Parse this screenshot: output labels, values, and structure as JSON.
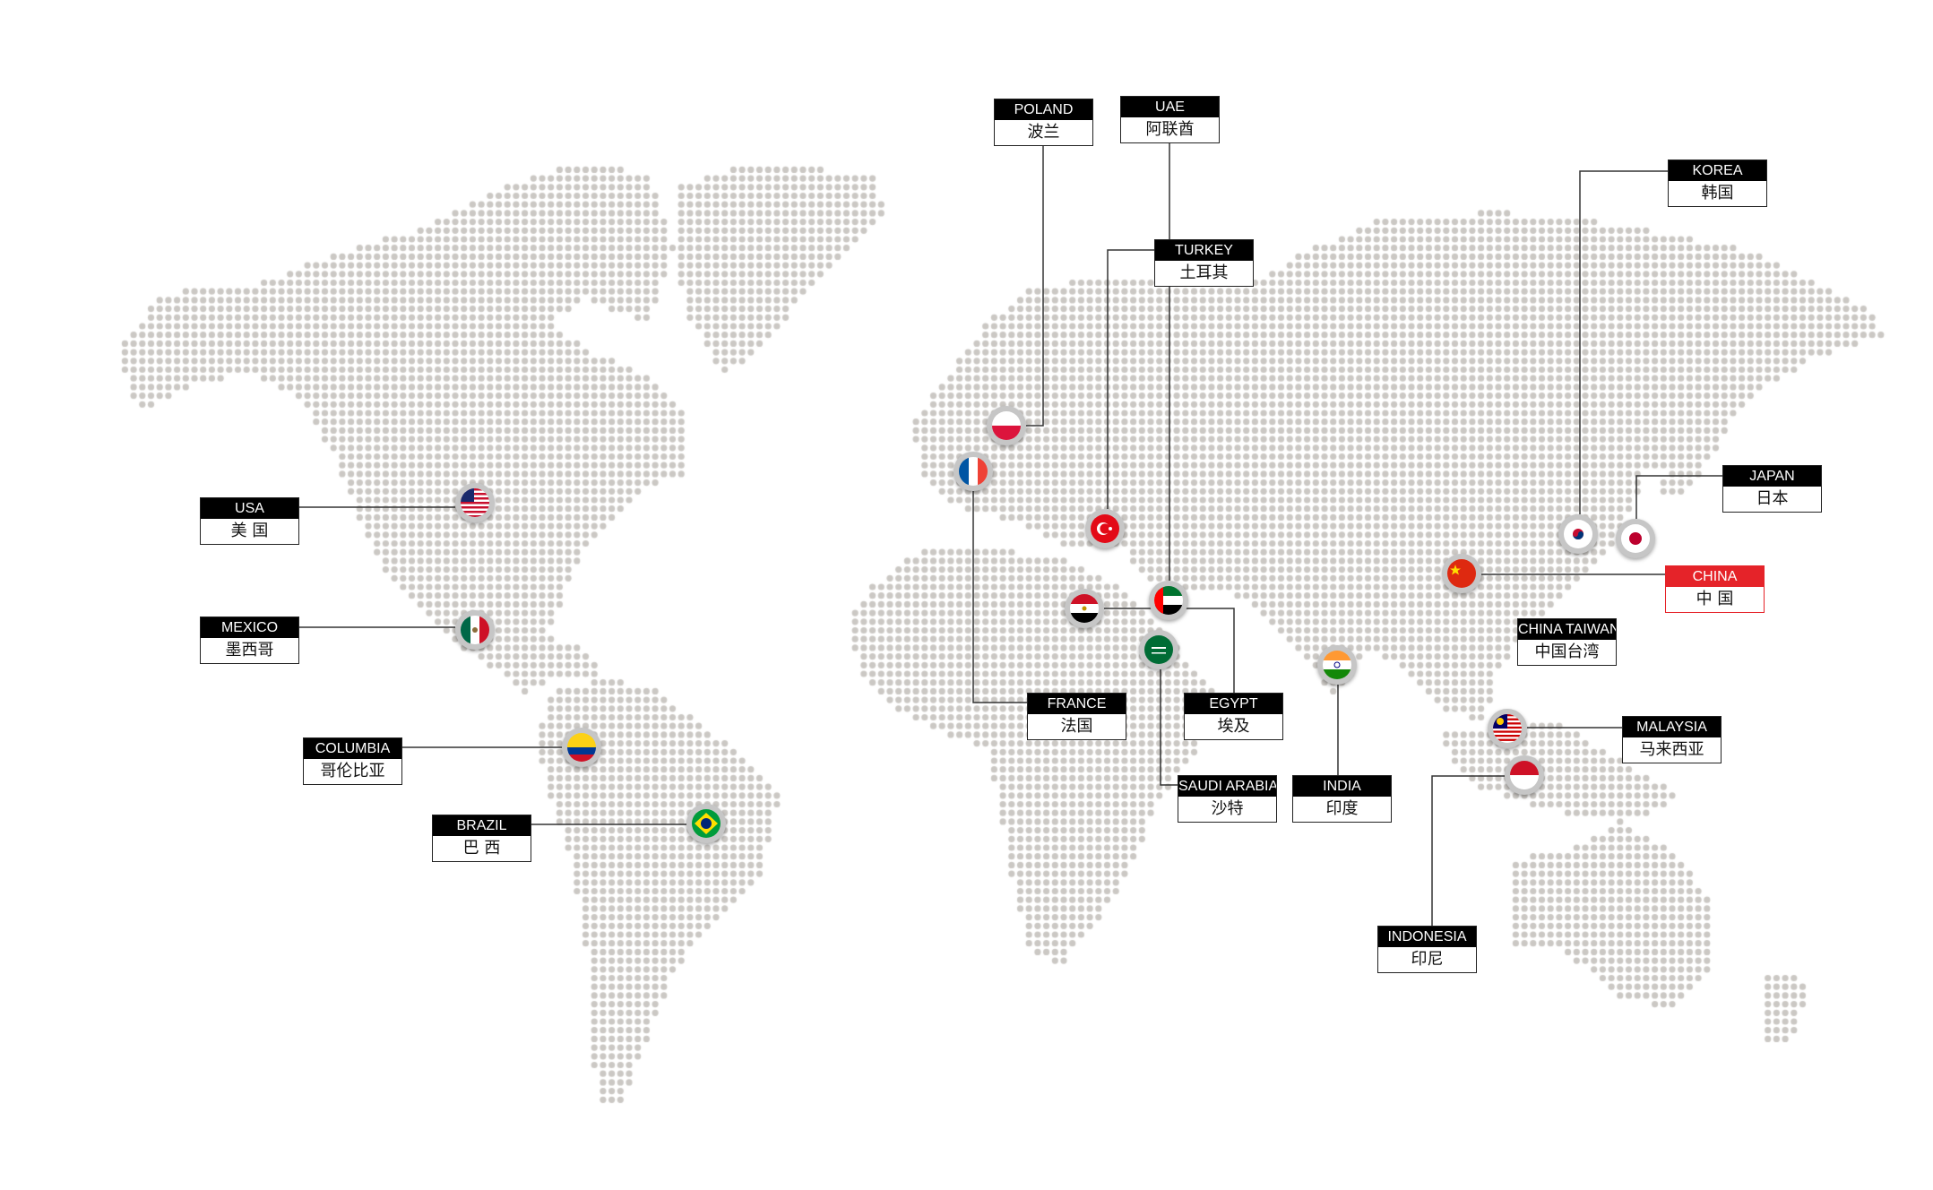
{
  "colors": {
    "dots": "#cbc8c4",
    "label_header": "#000000",
    "highlight": "#e52329",
    "line": "#333333"
  },
  "countries": [
    {
      "id": "usa",
      "en": "USA",
      "cn": "美 国",
      "flag_icon": "usa-flag-icon"
    },
    {
      "id": "mexico",
      "en": "MEXICO",
      "cn": "墨西哥",
      "flag_icon": "mexico-flag-icon"
    },
    {
      "id": "columbia",
      "en": "COLUMBIA",
      "cn": "哥伦比亚",
      "flag_icon": "colombia-flag-icon"
    },
    {
      "id": "brazil",
      "en": "BRAZIL",
      "cn": "巴 西",
      "flag_icon": "brazil-flag-icon"
    },
    {
      "id": "poland",
      "en": "POLAND",
      "cn": "波兰",
      "flag_icon": "poland-flag-icon"
    },
    {
      "id": "uae",
      "en": "UAE",
      "cn": "阿联酋",
      "flag_icon": "uae-flag-icon"
    },
    {
      "id": "turkey",
      "en": "TURKEY",
      "cn": "土耳其",
      "flag_icon": "turkey-flag-icon"
    },
    {
      "id": "france",
      "en": "FRANCE",
      "cn": "法国",
      "flag_icon": "france-flag-icon"
    },
    {
      "id": "egypt",
      "en": "EGYPT",
      "cn": "埃及",
      "flag_icon": "egypt-flag-icon"
    },
    {
      "id": "saudi",
      "en": "SAUDI ARABIA",
      "cn": "沙特",
      "flag_icon": "saudi-arabia-flag-icon"
    },
    {
      "id": "india",
      "en": "INDIA",
      "cn": "印度",
      "flag_icon": "india-flag-icon"
    },
    {
      "id": "korea",
      "en": "KOREA",
      "cn": "韩国",
      "flag_icon": "korea-flag-icon"
    },
    {
      "id": "japan",
      "en": "JAPAN",
      "cn": "日本",
      "flag_icon": "japan-flag-icon"
    },
    {
      "id": "china",
      "en": "CHINA",
      "cn": "中 国",
      "flag_icon": "china-flag-icon",
      "highlight": true
    },
    {
      "id": "taiwan",
      "en": "CHINA TAIWAN",
      "cn": "中国台湾"
    },
    {
      "id": "malaysia",
      "en": "MALAYSIA",
      "cn": "马来西亚",
      "flag_icon": "malaysia-flag-icon"
    },
    {
      "id": "indonesia",
      "en": "INDONESIA",
      "cn": "印尼",
      "flag_icon": "indonesia-flag-icon"
    }
  ]
}
